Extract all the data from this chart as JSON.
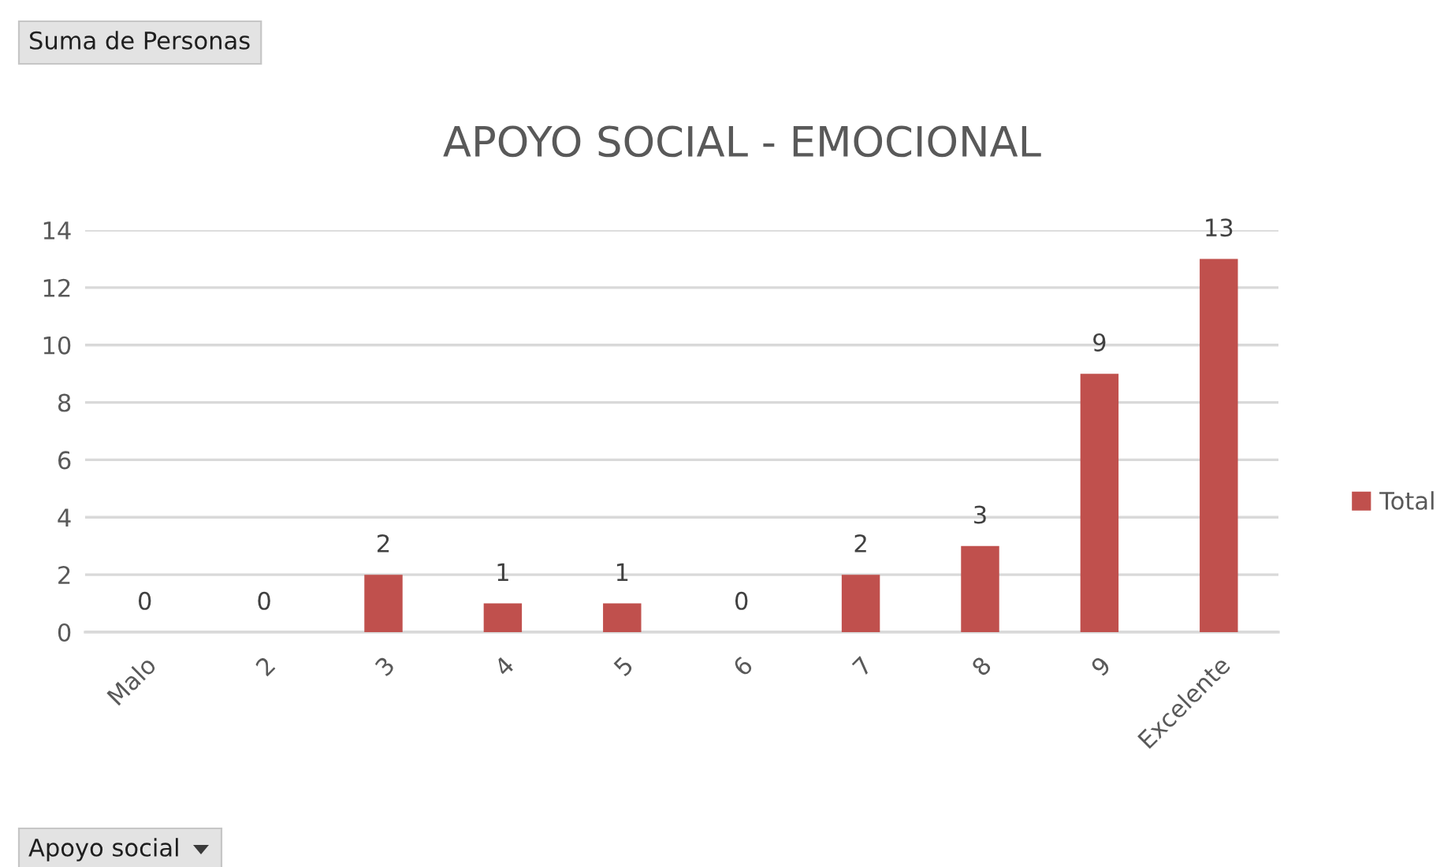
{
  "chart_data": {
    "type": "bar",
    "title": "APOYO SOCIAL - EMOCIONAL",
    "categories": [
      "Malo",
      "2",
      "3",
      "4",
      "5",
      "6",
      "7",
      "8",
      "9",
      "Excelente"
    ],
    "series": [
      {
        "name": "Total",
        "color": "#c0504d",
        "values": [
          0,
          0,
          2,
          1,
          1,
          0,
          2,
          3,
          9,
          13
        ]
      }
    ],
    "ylim": [
      0,
      14
    ],
    "yticks": [
      0,
      2,
      4,
      6,
      8,
      10,
      12,
      14
    ],
    "grid": "y",
    "legend": "right",
    "data_labels": true,
    "annotations": [
      "Suma de Personas",
      "Apoyo social"
    ]
  }
}
